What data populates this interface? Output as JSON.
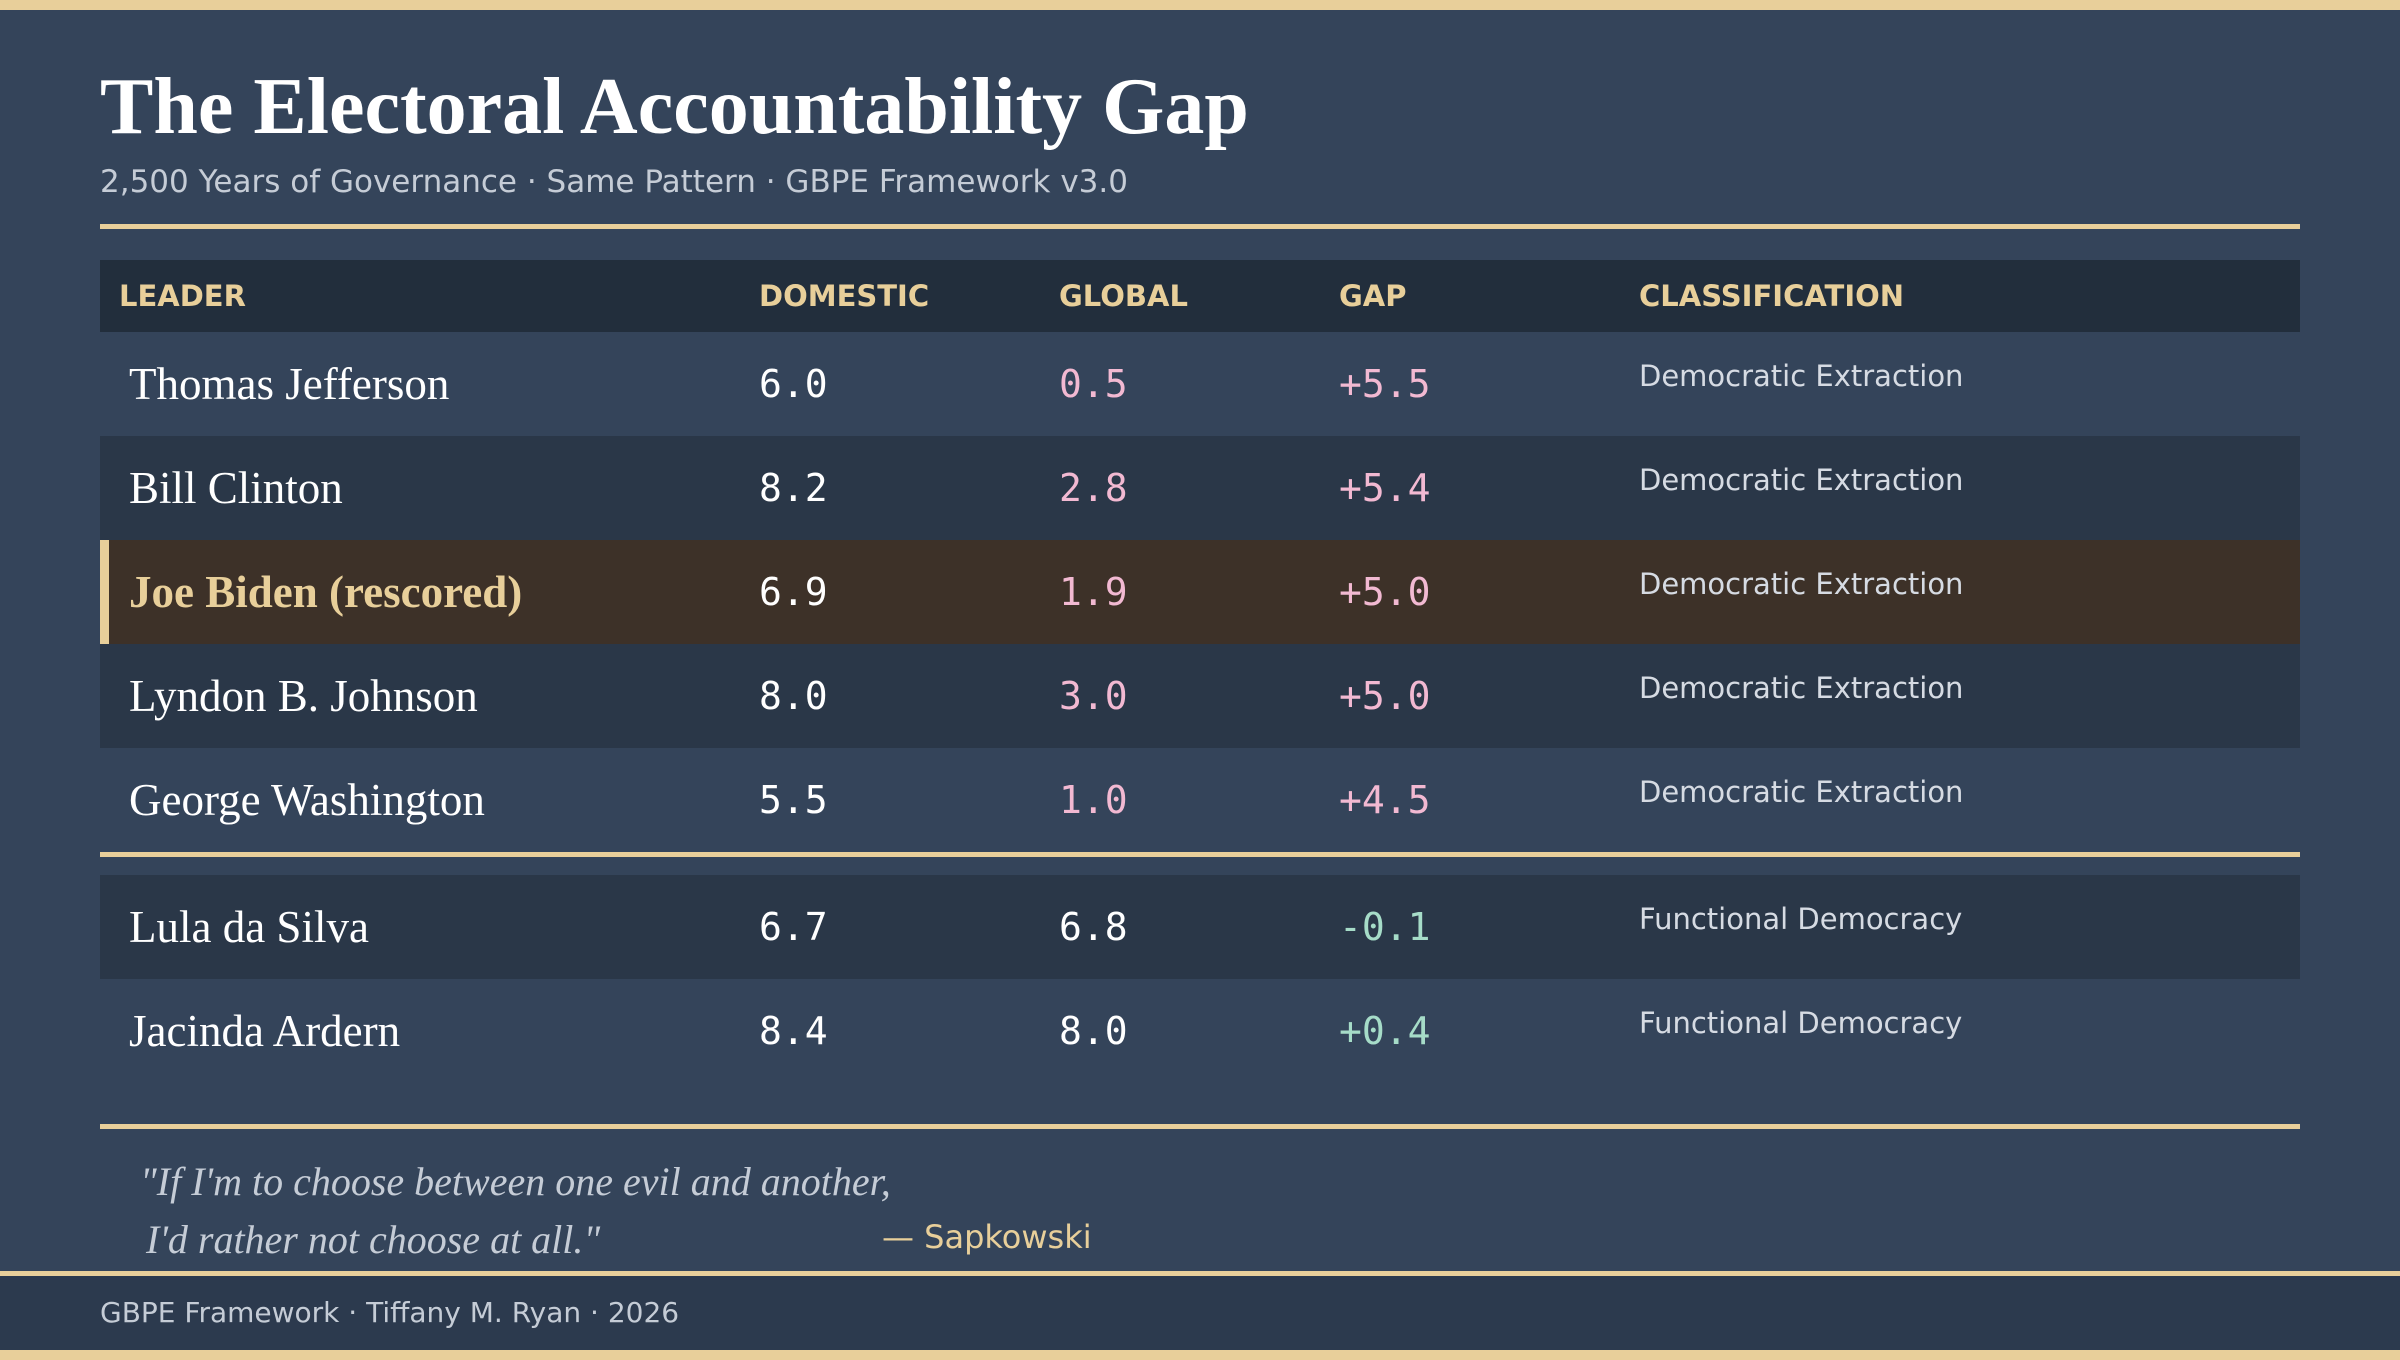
{
  "header": {
    "title": "The Electoral Accountability Gap",
    "subtitle": "2,500 Years of Governance · Same Pattern · GBPE Framework v3.0"
  },
  "table": {
    "columns": [
      "LEADER",
      "DOMESTIC",
      "GLOBAL",
      "GAP",
      "CLASSIFICATION"
    ],
    "groups": [
      {
        "rows": [
          [
            "Thomas Jefferson",
            "6.0",
            "0.5",
            "+5.5",
            "Democratic Extraction"
          ],
          [
            "Bill Clinton",
            "8.2",
            "2.8",
            "+5.4",
            "Democratic Extraction"
          ],
          [
            "Joe Biden (rescored)",
            "6.9",
            "1.9",
            "+5.0",
            "Democratic Extraction"
          ],
          [
            "Lyndon B. Johnson",
            "8.0",
            "3.0",
            "+5.0",
            "Democratic Extraction"
          ],
          [
            "George Washington",
            "5.5",
            "1.0",
            "+4.5",
            "Democratic Extraction"
          ]
        ]
      },
      {
        "rows": [
          [
            "Lula da Silva",
            "6.7",
            "6.8",
            "-0.1",
            "Functional Democracy"
          ],
          [
            "Jacinda Ardern",
            "8.4",
            "8.0",
            "+0.4",
            "Functional Democracy"
          ]
        ]
      }
    ]
  },
  "quote": {
    "lines": [
      "\"If I'm to choose between one evil and another,",
      "I'd rather not choose at all.\""
    ],
    "attribution": "— Sapkowski"
  },
  "footer": {
    "text": "GBPE Framework · Tiffany M. Ryan · 2026"
  }
}
